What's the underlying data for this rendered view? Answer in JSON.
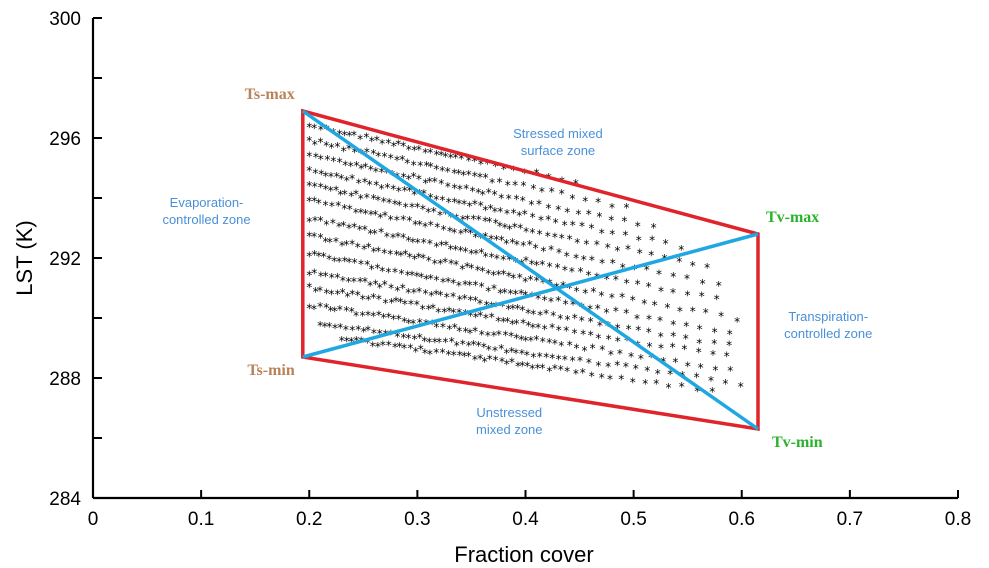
{
  "chart_data": {
    "type": "scatter",
    "title": "",
    "xlabel": "Fraction cover",
    "ylabel": "LST (K)",
    "xlim": [
      0,
      0.8
    ],
    "ylim": [
      284,
      300
    ],
    "x_ticks": [
      0,
      0.1,
      0.2,
      0.3,
      0.4,
      0.5,
      0.6,
      0.7,
      0.8
    ],
    "x_tick_labels": [
      "0",
      "0.1",
      "0.2",
      "0.3",
      "0.4",
      "0.5",
      "0.6",
      "0.7",
      "0.8"
    ],
    "y_ticks": [
      284,
      288,
      292,
      296,
      300
    ],
    "y_tick_labels": [
      "284",
      "288",
      "292",
      "296",
      "300"
    ],
    "y_minor_ticks": [
      286,
      290,
      294,
      298
    ],
    "grid": false,
    "marker": "*",
    "colors": {
      "boundary": "#e0242b",
      "diagonal": "#1ea7e1",
      "ts_label": "#b9835a",
      "tv_label": "#2bb32b",
      "zone_label": "#4a90d9"
    },
    "vertices": [
      {
        "name": "Ts-max",
        "x": 0.194,
        "y": 296.9
      },
      {
        "name": "Tv-max",
        "x": 0.615,
        "y": 292.8
      },
      {
        "name": "Tv-min",
        "x": 0.615,
        "y": 286.3
      },
      {
        "name": "Ts-min",
        "x": 0.194,
        "y": 288.7
      }
    ],
    "zones": [
      {
        "lines": [
          "Stressed mixed",
          "surface zone"
        ],
        "x": 0.43,
        "y": 296.0
      },
      {
        "lines": [
          "Evaporation-",
          "controlled zone"
        ],
        "x": 0.105,
        "y": 293.7
      },
      {
        "lines": [
          "Transpiration-",
          "controlled zone"
        ],
        "x": 0.68,
        "y": 289.9
      },
      {
        "lines": [
          "Unstressed",
          "mixed zone"
        ],
        "x": 0.385,
        "y": 286.7
      }
    ],
    "scatter_bands": {
      "description_free": true,
      "bands": [
        {
          "y_start": 296.4,
          "y_end": 294.4,
          "x_start": 0.2,
          "x_end": 0.46
        },
        {
          "y_start": 295.9,
          "y_end": 293.6,
          "x_start": 0.2,
          "x_end": 0.5
        },
        {
          "y_start": 295.4,
          "y_end": 292.9,
          "x_start": 0.2,
          "x_end": 0.53
        },
        {
          "y_start": 294.9,
          "y_end": 292.3,
          "x_start": 0.2,
          "x_end": 0.55
        },
        {
          "y_start": 294.4,
          "y_end": 291.7,
          "x_start": 0.2,
          "x_end": 0.57
        },
        {
          "y_start": 293.9,
          "y_end": 291.1,
          "x_start": 0.2,
          "x_end": 0.58
        },
        {
          "y_start": 293.3,
          "y_end": 290.5,
          "x_start": 0.2,
          "x_end": 0.59
        },
        {
          "y_start": 292.7,
          "y_end": 289.9,
          "x_start": 0.2,
          "x_end": 0.6
        },
        {
          "y_start": 292.1,
          "y_end": 289.4,
          "x_start": 0.2,
          "x_end": 0.6
        },
        {
          "y_start": 291.5,
          "y_end": 289.0,
          "x_start": 0.2,
          "x_end": 0.6
        },
        {
          "y_start": 291.0,
          "y_end": 288.6,
          "x_start": 0.2,
          "x_end": 0.6
        },
        {
          "y_start": 290.4,
          "y_end": 288.2,
          "x_start": 0.2,
          "x_end": 0.6
        },
        {
          "y_start": 289.8,
          "y_end": 287.8,
          "x_start": 0.21,
          "x_end": 0.6
        },
        {
          "y_start": 289.3,
          "y_end": 287.5,
          "x_start": 0.23,
          "x_end": 0.58
        }
      ]
    }
  }
}
